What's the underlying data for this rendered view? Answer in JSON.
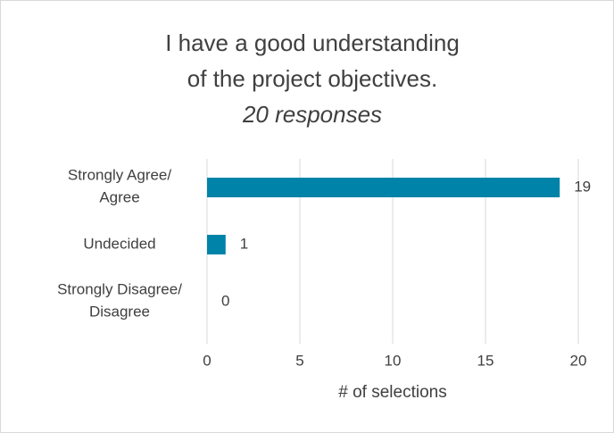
{
  "chart_data": {
    "type": "hbar",
    "title": "I have a good understanding of the project objectives.",
    "subtitle": "20 responses",
    "x_label": "# of selections",
    "categories": [
      "Strongly Agree/ Agree",
      "Undecided",
      "Strongly Disagree/ Disagree"
    ],
    "values": [
      19,
      1,
      0
    ],
    "color": "#0083a8",
    "xlim": [
      0,
      20
    ],
    "xticks": [
      0,
      5,
      10,
      15,
      20
    ],
    "grid": true
  }
}
